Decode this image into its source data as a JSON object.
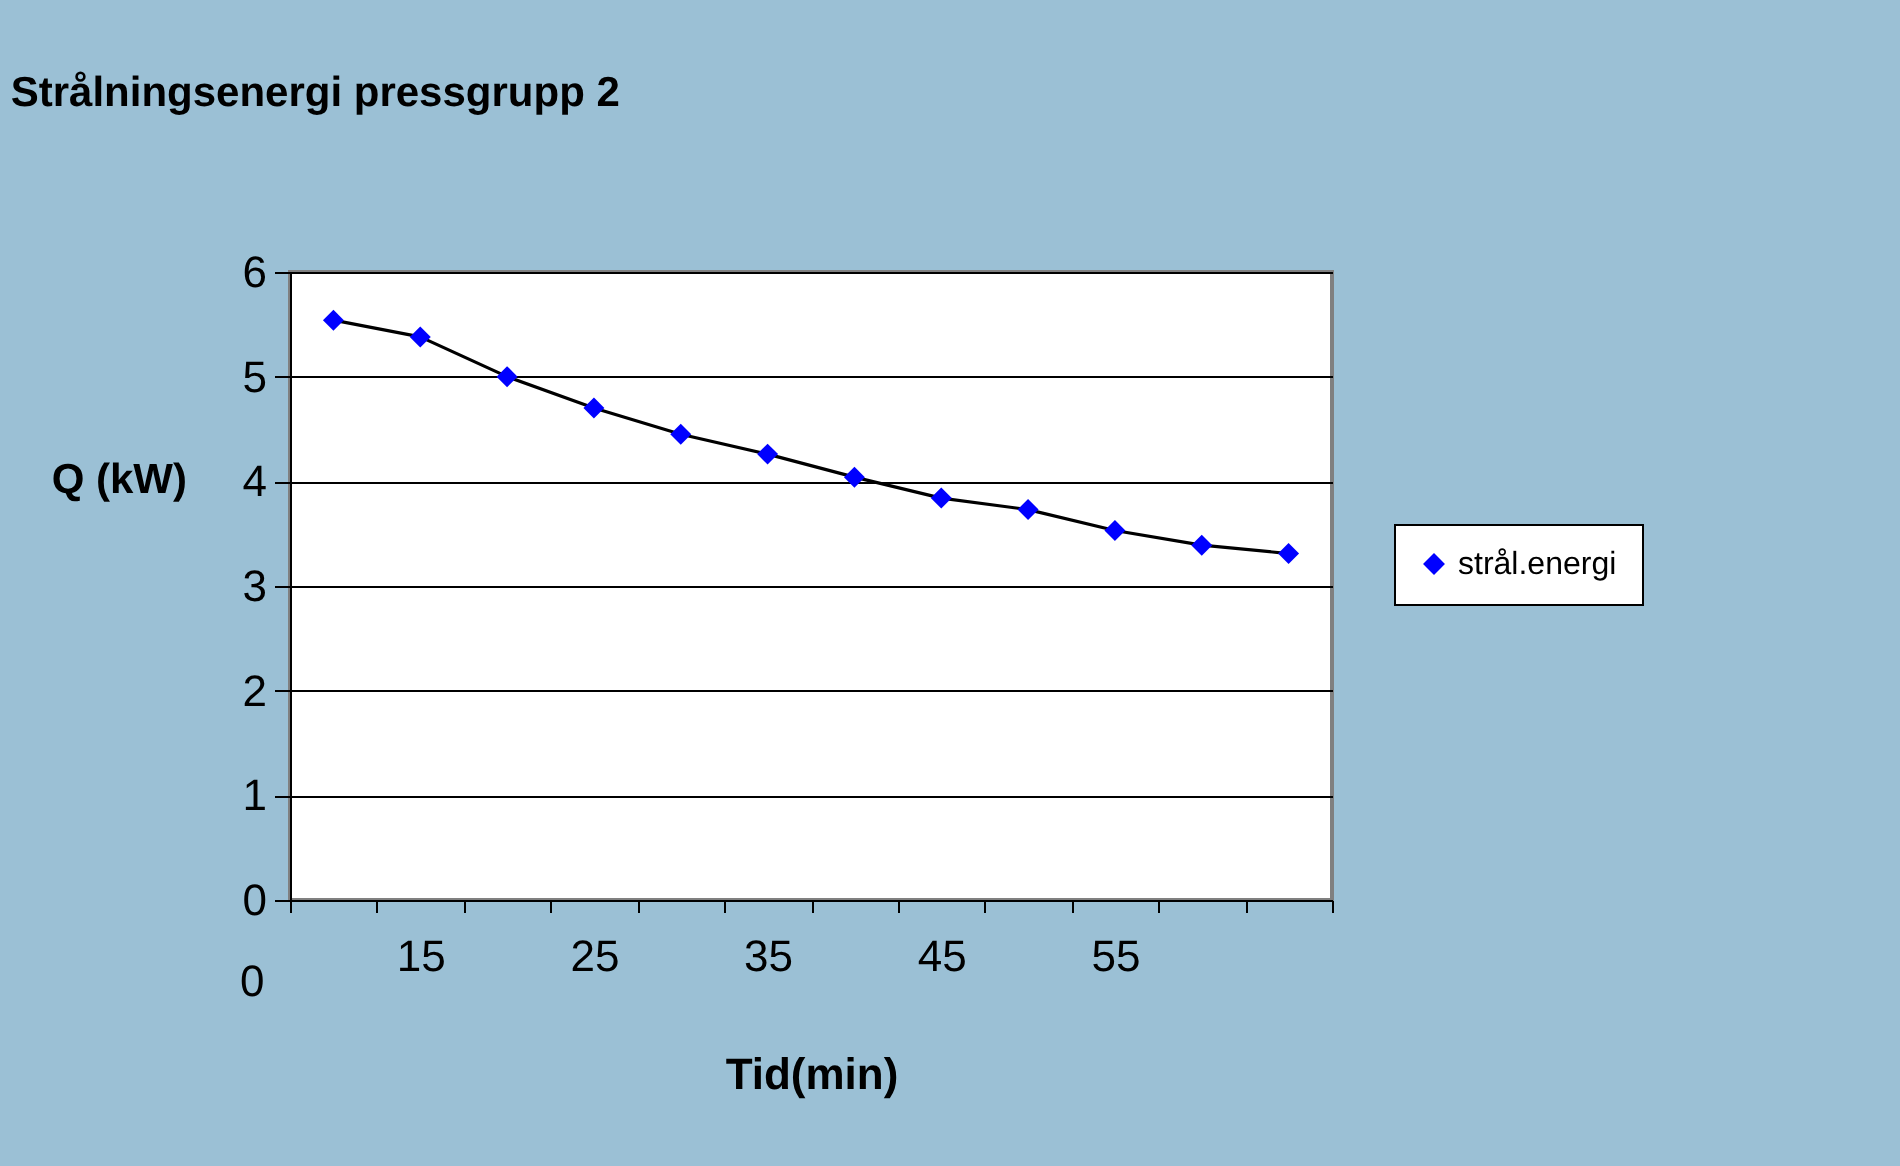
{
  "chart_data": {
    "type": "line",
    "title": "Strålningsenergi pressgrupp 2",
    "xlabel": "Tid(min)",
    "ylabel": "Q (kW)",
    "categories": [
      null,
      "15",
      null,
      "25",
      null,
      "35",
      null,
      "45",
      null,
      "55",
      null,
      null
    ],
    "series": [
      {
        "name": "strål.energi",
        "color": "#0000ff",
        "values": [
          5.54,
          5.38,
          5.0,
          4.7,
          4.45,
          4.26,
          4.04,
          3.84,
          3.73,
          3.53,
          3.39,
          3.31
        ]
      }
    ],
    "annotations": [
      "0"
    ],
    "ylim": [
      0,
      6
    ],
    "yticks": [
      0,
      1,
      2,
      3,
      4,
      5,
      6
    ],
    "grid": "y",
    "legend": "right",
    "marker": "diamond",
    "line_style": "solid"
  }
}
